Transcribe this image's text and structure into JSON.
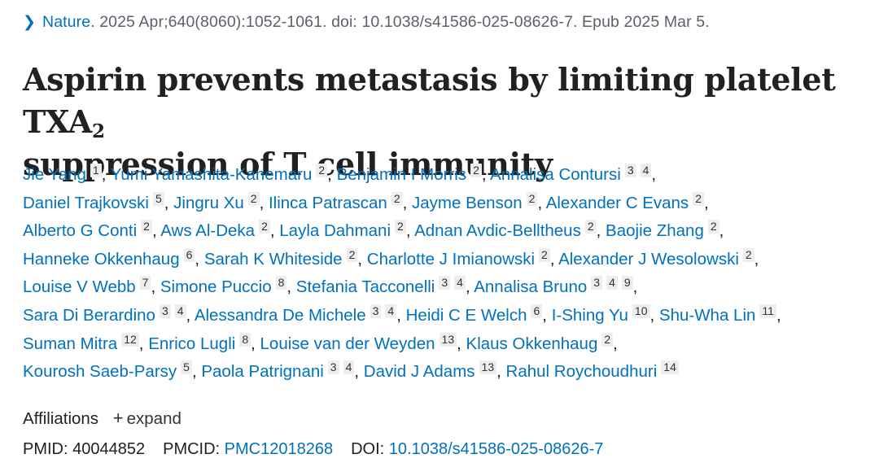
{
  "citation": {
    "journal": "Nature.",
    "details": " 2025 Apr;640(8060):1052-1061. doi: 10.1038/s41586-025-08626-7. Epub 2025 Mar 5."
  },
  "title": {
    "main": "Aspirin prevents metastasis by limiting platelet TXA",
    "subscript": "2",
    "rest": "suppression of T cell immunity"
  },
  "authors": [
    {
      "name": "Jie Yang",
      "affs": [
        "1"
      ]
    },
    {
      "name": "Yumi Yamashita-Kanemaru",
      "affs": [
        "2"
      ]
    },
    {
      "name": "Benjamin I Morris",
      "affs": [
        "2"
      ]
    },
    {
      "name": "Annalisa Contursi",
      "affs": [
        "3",
        "4"
      ]
    },
    {
      "name": "Daniel Trajkovski",
      "affs": [
        "5"
      ]
    },
    {
      "name": "Jingru Xu",
      "affs": [
        "2"
      ]
    },
    {
      "name": "Ilinca Patrascan",
      "affs": [
        "2"
      ]
    },
    {
      "name": "Jayme Benson",
      "affs": [
        "2"
      ]
    },
    {
      "name": "Alexander C Evans",
      "affs": [
        "2"
      ]
    },
    {
      "name": "Alberto G Conti",
      "affs": [
        "2"
      ]
    },
    {
      "name": "Aws Al-Deka",
      "affs": [
        "2"
      ]
    },
    {
      "name": "Layla Dahmani",
      "affs": [
        "2"
      ]
    },
    {
      "name": "Adnan Avdic-Belltheus",
      "affs": [
        "2"
      ]
    },
    {
      "name": "Baojie Zhang",
      "affs": [
        "2"
      ]
    },
    {
      "name": "Hanneke Okkenhaug",
      "affs": [
        "6"
      ]
    },
    {
      "name": "Sarah K Whiteside",
      "affs": [
        "2"
      ]
    },
    {
      "name": "Charlotte J Imianowski",
      "affs": [
        "2"
      ]
    },
    {
      "name": "Alexander J Wesolowski",
      "affs": [
        "2"
      ]
    },
    {
      "name": "Louise V Webb",
      "affs": [
        "7"
      ]
    },
    {
      "name": "Simone Puccio",
      "affs": [
        "8"
      ]
    },
    {
      "name": "Stefania Tacconelli",
      "affs": [
        "3",
        "4"
      ]
    },
    {
      "name": "Annalisa Bruno",
      "affs": [
        "3",
        "4",
        "9"
      ]
    },
    {
      "name": "Sara Di Berardino",
      "affs": [
        "3",
        "4"
      ]
    },
    {
      "name": "Alessandra De Michele",
      "affs": [
        "3",
        "4"
      ]
    },
    {
      "name": "Heidi C E Welch",
      "affs": [
        "6"
      ]
    },
    {
      "name": "I-Shing Yu",
      "affs": [
        "10"
      ]
    },
    {
      "name": "Shu-Wha Lin",
      "affs": [
        "11"
      ]
    },
    {
      "name": "Suman Mitra",
      "affs": [
        "12"
      ]
    },
    {
      "name": "Enrico Lugli",
      "affs": [
        "8"
      ]
    },
    {
      "name": "Louise van der Weyden",
      "affs": [
        "13"
      ]
    },
    {
      "name": "Klaus Okkenhaug",
      "affs": [
        "2"
      ]
    },
    {
      "name": "Kourosh Saeb-Parsy",
      "affs": [
        "5"
      ]
    },
    {
      "name": "Paola Patrignani",
      "affs": [
        "3",
        "4"
      ]
    },
    {
      "name": "David J Adams",
      "affs": [
        "13"
      ]
    },
    {
      "name": "Rahul Roychoudhuri",
      "affs": [
        "14"
      ]
    }
  ],
  "affiliations": {
    "label": "Affiliations",
    "plus": "+",
    "expand": "expand"
  },
  "identifiers": {
    "pmid_label": "PMID:",
    "pmid": "40044852",
    "pmcid_label": "PMCID:",
    "pmcid": "PMC12018268",
    "doi_label": "DOI:",
    "doi": "10.1038/s41586-025-08626-7"
  }
}
